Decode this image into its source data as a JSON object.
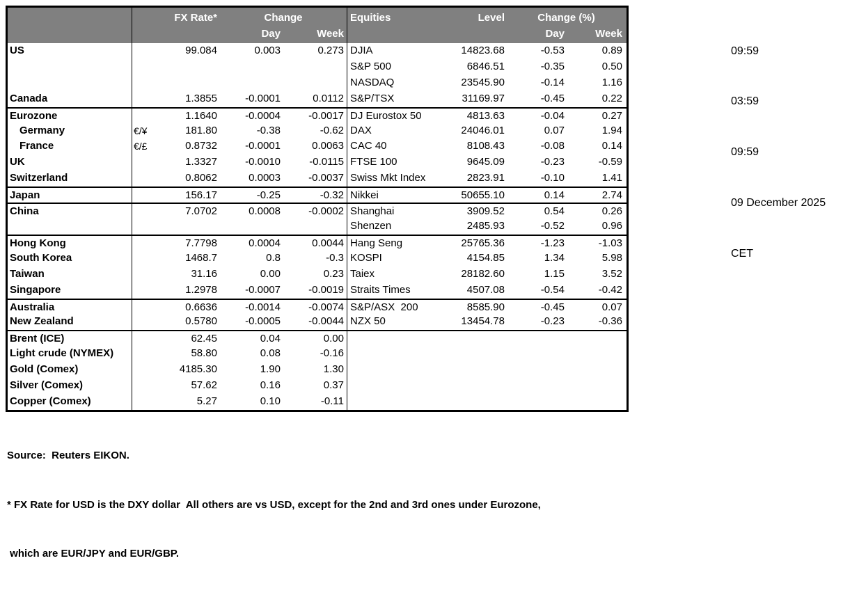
{
  "colors": {
    "header_bg": "#808080",
    "header_text": "#ffffff",
    "border": "#000000"
  },
  "header": {
    "fx_rate": "FX Rate*",
    "fx_change": "Change",
    "fx_day": "Day",
    "fx_week": "Week",
    "equities": "Equities",
    "level": "Level",
    "eq_change": "Change (%)",
    "eq_day": "Day",
    "eq_week": "Week"
  },
  "rows": [
    {
      "label": "US",
      "indent": false,
      "pair": "",
      "fx": "99.084",
      "fxd": "0.003",
      "fxw": "0.273",
      "eq": "DJIA",
      "lvl": "14823.68",
      "eqd": "-0.53",
      "eqw": "0.89",
      "grp": false
    },
    {
      "label": "",
      "indent": false,
      "pair": "",
      "fx": "",
      "fxd": "",
      "fxw": "",
      "eq": "S&P 500",
      "lvl": "6846.51",
      "eqd": "-0.35",
      "eqw": "0.50",
      "grp": false
    },
    {
      "label": "",
      "indent": false,
      "pair": "",
      "fx": "",
      "fxd": "",
      "fxw": "",
      "eq": "NASDAQ",
      "lvl": "23545.90",
      "eqd": "-0.14",
      "eqw": "1.16",
      "grp": false
    },
    {
      "label": "Canada",
      "indent": false,
      "pair": "",
      "fx": "1.3855",
      "fxd": "-0.0001",
      "fxw": "0.0112",
      "eq": "S&P/TSX",
      "lvl": "31169.97",
      "eqd": "-0.45",
      "eqw": "0.22",
      "grp": false
    },
    {
      "label": "Eurozone",
      "indent": false,
      "pair": "",
      "fx": "1.1640",
      "fxd": "-0.0004",
      "fxw": "-0.0017",
      "eq": "DJ Eurostox 50",
      "lvl": "4813.63",
      "eqd": "-0.04",
      "eqw": "0.27",
      "grp": true
    },
    {
      "label": "Germany",
      "indent": true,
      "pair": "€/¥",
      "fx": "181.80",
      "fxd": "-0.38",
      "fxw": "-0.62",
      "eq": "DAX",
      "lvl": "24046.01",
      "eqd": "0.07",
      "eqw": "1.94",
      "grp": false
    },
    {
      "label": "France",
      "indent": true,
      "pair": "€/£",
      "fx": "0.8732",
      "fxd": "-0.0001",
      "fxw": "0.0063",
      "eq": "CAC 40",
      "lvl": "8108.43",
      "eqd": "-0.08",
      "eqw": "0.14",
      "grp": false
    },
    {
      "label": "UK",
      "indent": false,
      "pair": "",
      "fx": "1.3327",
      "fxd": "-0.0010",
      "fxw": "-0.0115",
      "eq": "FTSE 100",
      "lvl": "9645.09",
      "eqd": "-0.23",
      "eqw": "-0.59",
      "grp": false
    },
    {
      "label": "Switzerland",
      "indent": false,
      "pair": "",
      "fx": "0.8062",
      "fxd": "0.0003",
      "fxw": "-0.0037",
      "eq": "Swiss Mkt Index",
      "lvl": "2823.91",
      "eqd": "-0.10",
      "eqw": "1.41",
      "grp": false
    },
    {
      "label": "Japan",
      "indent": false,
      "pair": "",
      "fx": "156.17",
      "fxd": "-0.25",
      "fxw": "-0.32",
      "eq": "Nikkei",
      "lvl": "50655.10",
      "eqd": "0.14",
      "eqw": "2.74",
      "grp": true
    },
    {
      "label": "China",
      "indent": false,
      "pair": "",
      "fx": "7.0702",
      "fxd": "0.0008",
      "fxw": "-0.0002",
      "eq": "Shanghai",
      "lvl": "3909.52",
      "eqd": "0.54",
      "eqw": "0.26",
      "grp": true
    },
    {
      "label": "",
      "indent": false,
      "pair": "",
      "fx": "",
      "fxd": "",
      "fxw": "",
      "eq": "Shenzen",
      "lvl": "2485.93",
      "eqd": "-0.52",
      "eqw": "0.96",
      "grp": false
    },
    {
      "label": "Hong Kong",
      "indent": false,
      "pair": "",
      "fx": "7.7798",
      "fxd": "0.0004",
      "fxw": "0.0044",
      "eq": "Hang Seng",
      "lvl": "25765.36",
      "eqd": "-1.23",
      "eqw": "-1.03",
      "grp": true
    },
    {
      "label": "South Korea",
      "indent": false,
      "pair": "",
      "fx": "1468.7",
      "fxd": "0.8",
      "fxw": "-0.3",
      "eq": "KOSPI",
      "lvl": "4154.85",
      "eqd": "1.34",
      "eqw": "5.98",
      "grp": false
    },
    {
      "label": "Taiwan",
      "indent": false,
      "pair": "",
      "fx": "31.16",
      "fxd": "0.00",
      "fxw": "0.23",
      "eq": "Taiex",
      "lvl": "28182.60",
      "eqd": "1.15",
      "eqw": "3.52",
      "grp": false
    },
    {
      "label": "Singapore",
      "indent": false,
      "pair": "",
      "fx": "1.2978",
      "fxd": "-0.0007",
      "fxw": "-0.0019",
      "eq": "Straits Times",
      "lvl": "4507.08",
      "eqd": "-0.54",
      "eqw": "-0.42",
      "grp": false
    },
    {
      "label": "Australia",
      "indent": false,
      "pair": "",
      "fx": "0.6636",
      "fxd": "-0.0014",
      "fxw": "-0.0074",
      "eq": "S&P/ASX  200",
      "lvl": "8585.90",
      "eqd": "-0.45",
      "eqw": "0.07",
      "grp": true
    },
    {
      "label": "New Zealand",
      "indent": false,
      "pair": "",
      "fx": "0.5780",
      "fxd": "-0.0005",
      "fxw": "-0.0044",
      "eq": "NZX 50",
      "lvl": "13454.78",
      "eqd": "-0.23",
      "eqw": "-0.36",
      "grp": false
    },
    {
      "label": "Brent (ICE)",
      "indent": false,
      "pair": "",
      "fx": "62.45",
      "fxd": "0.04",
      "fxw": "0.00",
      "eq": "",
      "lvl": "",
      "eqd": "",
      "eqw": "",
      "grp": true
    },
    {
      "label": "Light crude (NYMEX)",
      "indent": false,
      "pair": "",
      "fx": "58.80",
      "fxd": "0.08",
      "fxw": "-0.16",
      "eq": "",
      "lvl": "",
      "eqd": "",
      "eqw": "",
      "grp": false
    },
    {
      "label": "Gold (Comex)",
      "indent": false,
      "pair": "",
      "fx": "4185.30",
      "fxd": "1.90",
      "fxw": "1.30",
      "eq": "",
      "lvl": "",
      "eqd": "",
      "eqw": "",
      "grp": false
    },
    {
      "label": "Silver (Comex)",
      "indent": false,
      "pair": "",
      "fx": "57.62",
      "fxd": "0.16",
      "fxw": "0.37",
      "eq": "",
      "lvl": "",
      "eqd": "",
      "eqw": "",
      "grp": false
    },
    {
      "label": "Copper (Comex)",
      "indent": false,
      "pair": "",
      "fx": "5.27",
      "fxd": "0.10",
      "fxw": "-0.11",
      "eq": "",
      "lvl": "",
      "eqd": "",
      "eqw": "",
      "grp": false
    }
  ],
  "timestamps": {
    "t1": "09:59",
    "t2": "03:59",
    "t3": "09:59",
    "date": "09 December 2025",
    "zone": "CET"
  },
  "footer": {
    "source": "Source:  Reuters EIKON.",
    "note1": "* FX Rate for USD is the DXY dollar  All others are vs USD, except for the 2nd and 3rd ones under Eurozone,",
    "note2": " which are EUR/JPY and EUR/GBP."
  }
}
